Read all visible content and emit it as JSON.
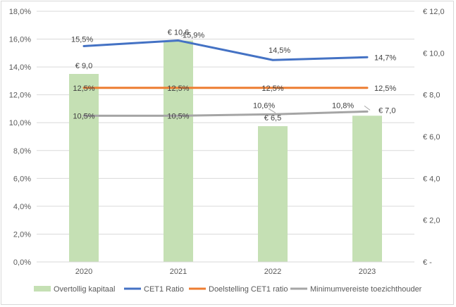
{
  "chart_data": {
    "type": "bar+line",
    "categories": [
      "2020",
      "2021",
      "2022",
      "2023"
    ],
    "y_left": {
      "min": 0,
      "max": 18,
      "step": 2,
      "tick_labels": [
        "0,0%",
        "2,0%",
        "4,0%",
        "6,0%",
        "8,0%",
        "10,0%",
        "12,0%",
        "14,0%",
        "16,0%",
        "18,0%"
      ]
    },
    "y_right": {
      "min": 0,
      "max": 12,
      "step": 2,
      "tick_labels": [
        "€ -",
        "€ 2,0",
        "€ 4,0",
        "€ 6,0",
        "€ 8,0",
        "€ 10,0",
        "€ 12,0"
      ]
    },
    "grid": true,
    "legend_position": "bottom",
    "bars": {
      "name": "Overtollig kapitaal",
      "axis": "right",
      "color": "#c5e0b4",
      "values": [
        9.0,
        10.6,
        6.5,
        7.0
      ],
      "labels": [
        "€ 9,0",
        "€ 10,6",
        "€ 6,5",
        "€ 7,0"
      ]
    },
    "series": [
      {
        "name": "CET1 Ratio",
        "axis": "left",
        "color": "#4472c4",
        "values": [
          15.5,
          15.9,
          14.5,
          14.7
        ],
        "labels": [
          "15,5%",
          "15,9%",
          "14,5%",
          "14,7%"
        ]
      },
      {
        "name": "Doelstelling  CET1 ratio",
        "axis": "left",
        "color": "#ed7d31",
        "values": [
          12.5,
          12.5,
          12.5,
          12.5
        ],
        "labels": [
          "12,5%",
          "12,5%",
          "12,5%",
          "12,5%"
        ]
      },
      {
        "name": "Minimumvereiste toezichthouder",
        "axis": "left",
        "color": "#a5a5a5",
        "values": [
          10.5,
          10.5,
          10.6,
          10.8
        ],
        "labels": [
          "10,5%",
          "10,5%",
          "10,6%",
          "10,8%"
        ]
      }
    ]
  }
}
